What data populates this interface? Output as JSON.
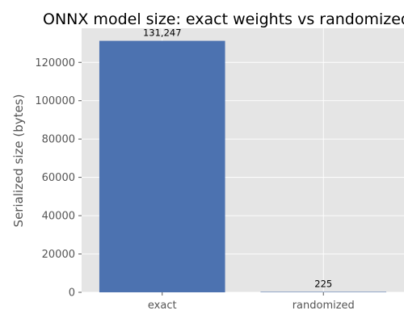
{
  "chart_data": {
    "type": "bar",
    "title": "ONNX model size: exact weights vs randomized",
    "xlabel": "",
    "ylabel": "Serialized size (bytes)",
    "categories": [
      "exact",
      "randomized"
    ],
    "values": [
      131247,
      225
    ],
    "data_labels": [
      "131,247",
      "225"
    ],
    "ylim": [
      0,
      137811
    ],
    "yticks": [
      0,
      20000,
      40000,
      60000,
      80000,
      100000,
      120000
    ],
    "ytick_labels": [
      "0",
      "20000",
      "40000",
      "60000",
      "80000",
      "100000",
      "120000"
    ],
    "grid": true,
    "legend": "none",
    "colors": {
      "bar": "#4c72b0",
      "plot_background": "#e5e5e5",
      "grid": "#ffffff"
    }
  }
}
